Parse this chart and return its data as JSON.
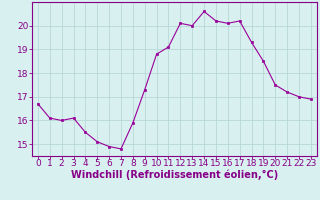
{
  "x": [
    0,
    1,
    2,
    3,
    4,
    5,
    6,
    7,
    8,
    9,
    10,
    11,
    12,
    13,
    14,
    15,
    16,
    17,
    18,
    19,
    20,
    21,
    22,
    23
  ],
  "y": [
    16.7,
    16.1,
    16.0,
    16.1,
    15.5,
    15.1,
    14.9,
    14.8,
    15.9,
    17.3,
    18.8,
    19.1,
    20.1,
    20.0,
    20.6,
    20.2,
    20.1,
    20.2,
    19.3,
    18.5,
    17.5,
    17.2,
    17.0,
    16.9
  ],
  "line_color": "#990099",
  "marker": "s",
  "marker_size": 2,
  "bg_color": "#d8f0f0",
  "grid_color": "#b8d8d8",
  "xlabel": "Windchill (Refroidissement éolien,°C)",
  "xlabel_fontsize": 7,
  "xlabel_color": "#880088",
  "tick_color": "#880088",
  "ylabel_ticks": [
    15,
    16,
    17,
    18,
    19,
    20
  ],
  "ylim": [
    14.5,
    21.0
  ],
  "xlim": [
    -0.5,
    23.5
  ],
  "tick_fontsize": 6.5
}
